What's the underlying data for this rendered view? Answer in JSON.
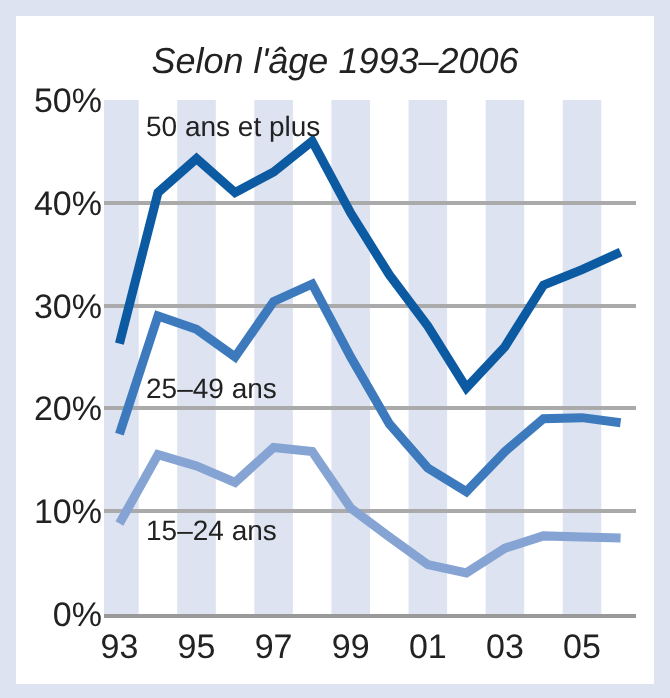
{
  "chart_data": {
    "type": "line",
    "title": "Selon l'âge 1993–2006",
    "x": [
      1993,
      1994,
      1995,
      1996,
      1997,
      1998,
      1999,
      2000,
      2001,
      2002,
      2003,
      2004,
      2005,
      2006
    ],
    "series": [
      {
        "name": "50 ans et plus",
        "color": "#0b5aa2",
        "values": [
          26.3,
          41,
          44.3,
          41,
          43,
          46,
          39,
          33,
          28,
          22,
          26,
          32,
          33.5,
          35.2
        ]
      },
      {
        "name": "25–49 ans",
        "color": "#3c7abd",
        "values": [
          17.5,
          29,
          27.7,
          25,
          30.4,
          32.1,
          25,
          18.5,
          14.2,
          11.9,
          15.8,
          19,
          19.1,
          18.6
        ]
      },
      {
        "name": "15–24 ans",
        "color": "#85a3d3",
        "values": [
          8.8,
          15.5,
          14.4,
          12.8,
          16.2,
          15.8,
          10.3,
          7.5,
          4.8,
          4.0,
          6.4,
          7.6,
          7.5,
          7.4
        ]
      }
    ],
    "xlim": [
      1992.6,
      2006.4
    ],
    "xticks": [
      {
        "value": 1993,
        "label": "93"
      },
      {
        "value": 1995,
        "label": "95"
      },
      {
        "value": 1997,
        "label": "97"
      },
      {
        "value": 1999,
        "label": "99"
      },
      {
        "value": 2001,
        "label": "01"
      },
      {
        "value": 2003,
        "label": "03"
      },
      {
        "value": 2005,
        "label": "05"
      }
    ],
    "ylim": [
      0,
      50
    ],
    "yticks": [
      {
        "value": 0,
        "label": "0%"
      },
      {
        "value": 10,
        "label": "10%"
      },
      {
        "value": 20,
        "label": "20%"
      },
      {
        "value": 30,
        "label": "30%"
      },
      {
        "value": 40,
        "label": "40%"
      },
      {
        "value": 50,
        "label": "50%"
      }
    ],
    "bands": [
      {
        "axis": "x",
        "from": 1992.6,
        "to": 1993.5,
        "color": "#dde3f0"
      },
      {
        "axis": "x",
        "from": 1994.5,
        "to": 1995.5,
        "color": "#dde3f0"
      },
      {
        "axis": "x",
        "from": 1996.5,
        "to": 1997.5,
        "color": "#dde3f0"
      },
      {
        "axis": "x",
        "from": 1998.5,
        "to": 1999.5,
        "color": "#dde3f0"
      },
      {
        "axis": "x",
        "from": 2000.5,
        "to": 2001.5,
        "color": "#dde3f0"
      },
      {
        "axis": "x",
        "from": 2002.5,
        "to": 2003.5,
        "color": "#dde3f0"
      },
      {
        "axis": "x",
        "from": 2004.5,
        "to": 2005.5,
        "color": "#dde3f0"
      }
    ],
    "grid": "y",
    "legend": false,
    "marker": "none",
    "line_style": "solid"
  }
}
